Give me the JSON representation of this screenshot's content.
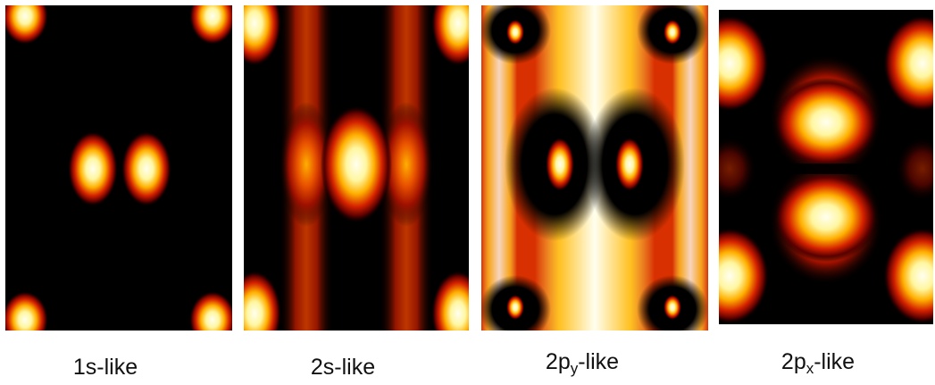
{
  "panels": [
    {
      "caption_prefix": "1s-like",
      "caption_sub": "",
      "caption_suffix": ""
    },
    {
      "caption_prefix": "2s-like",
      "caption_sub": "",
      "caption_suffix": ""
    },
    {
      "caption_prefix": "2p",
      "caption_sub": "y",
      "caption_suffix": "-like"
    },
    {
      "caption_prefix": "2p",
      "caption_sub": "x",
      "caption_suffix": "-like"
    }
  ],
  "colors": {
    "background": "#000000",
    "heat_low": "#5a0000",
    "heat_mid": "#d02800",
    "heat_high": "#ffb000",
    "heat_peak": "#ffffe0"
  }
}
